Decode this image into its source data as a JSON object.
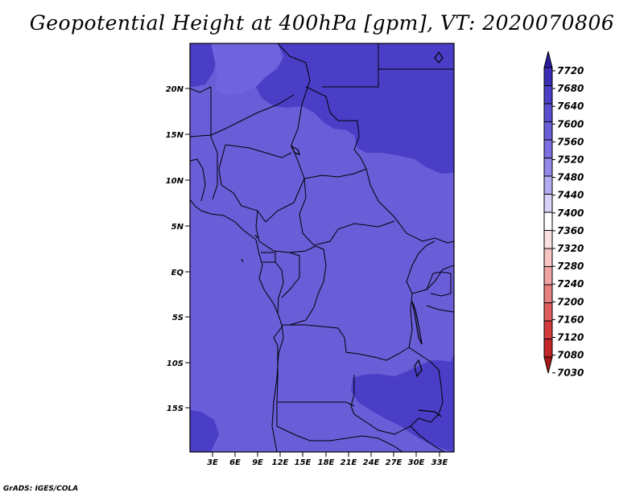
{
  "title": "Geopotential Height at 400hPa [gpm], VT: 2020070806",
  "credit": "GrADS: IGES/COLA",
  "map": {
    "lat_labels": [
      "20N",
      "15N",
      "10N",
      "5N",
      "EQ",
      "5S",
      "10S",
      "15S"
    ],
    "lon_labels": [
      "3E",
      "6E",
      "9E",
      "12E",
      "15E",
      "18E",
      "21E",
      "24E",
      "27E",
      "30E",
      "33E"
    ],
    "colors": {
      "base": "#6a5dd8",
      "lighter": "#7163df",
      "darker": "#4a3ec6"
    }
  },
  "colorbar": {
    "levels": [
      "7720",
      "7680",
      "7640",
      "7600",
      "7560",
      "7520",
      "7480",
      "7440",
      "7400",
      "7360",
      "7320",
      "7280",
      "7240",
      "7200",
      "7160",
      "7120",
      "7080",
      "7030"
    ],
    "colors": [
      "#2a1aa0",
      "#3a2cb4",
      "#4a3ec6",
      "#5a4ed0",
      "#6a5dd8",
      "#7b6fe2",
      "#9489ea",
      "#b4acf2",
      "#d6d2f8",
      "#ffffff",
      "#fde0e0",
      "#f8c4c4",
      "#f2a3a3",
      "#e98080",
      "#e05c5c",
      "#d43c3c",
      "#c22626",
      "#a81818"
    ]
  }
}
